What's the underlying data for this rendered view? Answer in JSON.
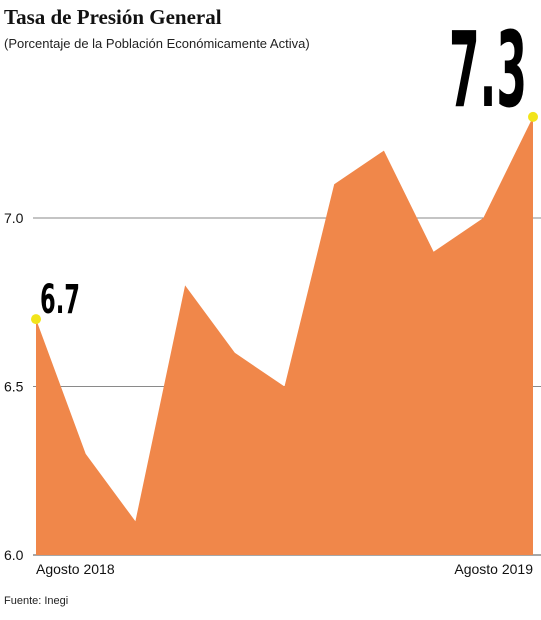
{
  "chart_data": {
    "type": "area",
    "title": "Tasa de Presión General",
    "subtitle": "(Porcentaje de la Población Económicamente Activa)",
    "x_labels": [
      "Agosto 2018",
      "Agosto 2019"
    ],
    "values": [
      6.7,
      6.3,
      6.1,
      6.8,
      6.6,
      6.5,
      7.1,
      7.2,
      6.9,
      7.0,
      7.3
    ],
    "ylim": [
      6.0,
      7.5
    ],
    "yticks": [
      "7.0",
      "6.5",
      "6.0"
    ],
    "start_callout": "6.7",
    "end_callout": "7.3",
    "grid": true,
    "fill_color": "#f0874a",
    "marker_color": "#f2e41a",
    "grid_color": "#8a8a8a",
    "source": "Fuente: Inegi"
  }
}
